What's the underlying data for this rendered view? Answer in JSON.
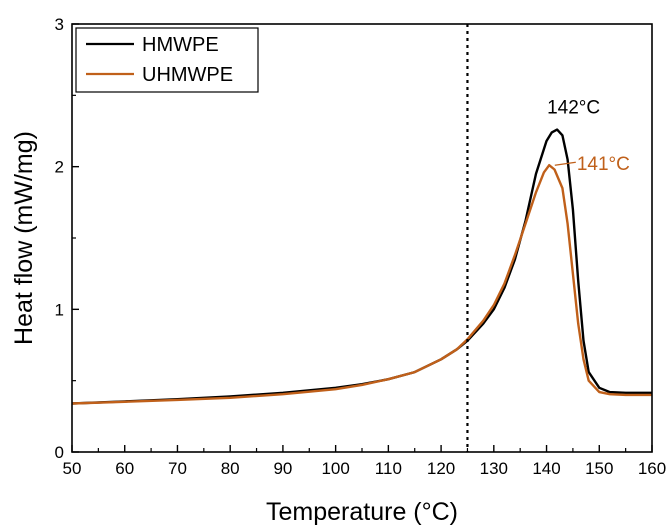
{
  "chart_data": {
    "type": "line",
    "xlabel": "Temperature (°C)",
    "ylabel": "Heat flow (mW/mg)",
    "xlim": [
      50,
      160
    ],
    "ylim": [
      0,
      3
    ],
    "x_ticks": [
      50,
      60,
      70,
      80,
      90,
      100,
      110,
      120,
      130,
      140,
      150,
      160
    ],
    "y_ticks": [
      0,
      1,
      2,
      3
    ],
    "grid": false,
    "legend_position": "top-left",
    "vertical_line": {
      "x": 125,
      "style": "dotted"
    },
    "series": [
      {
        "name": "HMWPE",
        "color": "#000000",
        "points": [
          [
            50,
            0.34
          ],
          [
            60,
            0.355
          ],
          [
            70,
            0.37
          ],
          [
            80,
            0.39
          ],
          [
            90,
            0.415
          ],
          [
            100,
            0.45
          ],
          [
            105,
            0.475
          ],
          [
            110,
            0.51
          ],
          [
            115,
            0.56
          ],
          [
            120,
            0.65
          ],
          [
            123,
            0.72
          ],
          [
            125,
            0.78
          ],
          [
            128,
            0.9
          ],
          [
            130,
            1.0
          ],
          [
            132,
            1.15
          ],
          [
            134,
            1.35
          ],
          [
            136,
            1.62
          ],
          [
            138,
            1.95
          ],
          [
            140,
            2.18
          ],
          [
            141,
            2.24
          ],
          [
            142,
            2.26
          ],
          [
            143,
            2.22
          ],
          [
            144,
            2.05
          ],
          [
            145,
            1.7
          ],
          [
            146,
            1.2
          ],
          [
            147,
            0.78
          ],
          [
            148,
            0.56
          ],
          [
            150,
            0.45
          ],
          [
            152,
            0.42
          ],
          [
            155,
            0.415
          ],
          [
            160,
            0.415
          ]
        ]
      },
      {
        "name": "UHMWPE",
        "color": "#c0601a",
        "points": [
          [
            50,
            0.34
          ],
          [
            60,
            0.352
          ],
          [
            70,
            0.365
          ],
          [
            80,
            0.38
          ],
          [
            90,
            0.405
          ],
          [
            100,
            0.44
          ],
          [
            105,
            0.47
          ],
          [
            110,
            0.51
          ],
          [
            115,
            0.56
          ],
          [
            120,
            0.65
          ],
          [
            123,
            0.72
          ],
          [
            125,
            0.79
          ],
          [
            128,
            0.92
          ],
          [
            130,
            1.03
          ],
          [
            132,
            1.18
          ],
          [
            134,
            1.38
          ],
          [
            136,
            1.6
          ],
          [
            138,
            1.82
          ],
          [
            139.5,
            1.96
          ],
          [
            140.5,
            2.01
          ],
          [
            141.5,
            1.98
          ],
          [
            143,
            1.85
          ],
          [
            144,
            1.6
          ],
          [
            145,
            1.25
          ],
          [
            146,
            0.9
          ],
          [
            147,
            0.65
          ],
          [
            148,
            0.5
          ],
          [
            150,
            0.42
          ],
          [
            152,
            0.405
          ],
          [
            155,
            0.4
          ],
          [
            160,
            0.4
          ]
        ]
      }
    ],
    "annotations": [
      {
        "text": "142°C",
        "x": 142,
        "y": 2.26,
        "color": "#000000"
      },
      {
        "text": "141°C",
        "x": 141,
        "y": 2.01,
        "color": "#c0601a"
      }
    ]
  }
}
